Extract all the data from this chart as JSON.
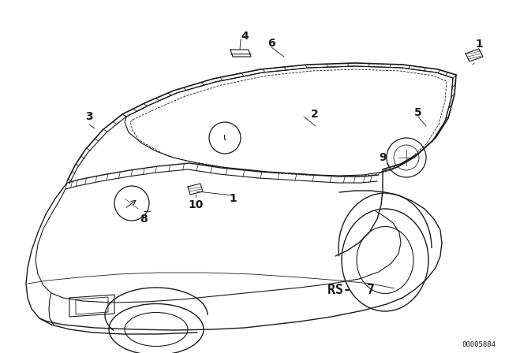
{
  "bg_color": "#ffffff",
  "line_color": "#1a1a1a",
  "rs_text": "RS-  7",
  "doc_number": "00005884",
  "figsize": [
    6.4,
    4.48
  ],
  "dpi": 100
}
